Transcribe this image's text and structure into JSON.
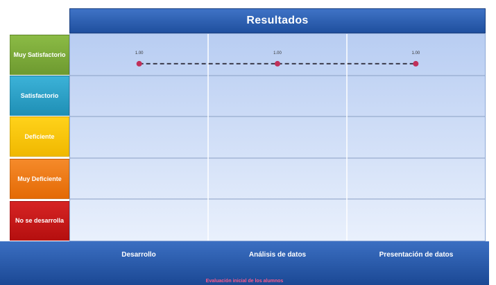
{
  "chart_data": {
    "type": "line",
    "title": "Resultados",
    "categories": [
      "Desarrollo",
      "Análisis de datos",
      "Presentación de datos"
    ],
    "levels": [
      "Muy Satisfactorio",
      "Satisfactorio",
      "Deficiente",
      "Muy Deficiente",
      "No se desarrolla"
    ],
    "level_colors": [
      "#7aa83a",
      "#29a3c9",
      "#f6c400",
      "#ef7a12",
      "#c81818"
    ],
    "series": [
      {
        "values": [
          1,
          1,
          1
        ],
        "data_labels": [
          "1.00",
          "1.00",
          "1.00"
        ],
        "color": "#c0305a"
      }
    ],
    "grid": true,
    "footnote": "Evaluación inicial de los alumnos"
  }
}
